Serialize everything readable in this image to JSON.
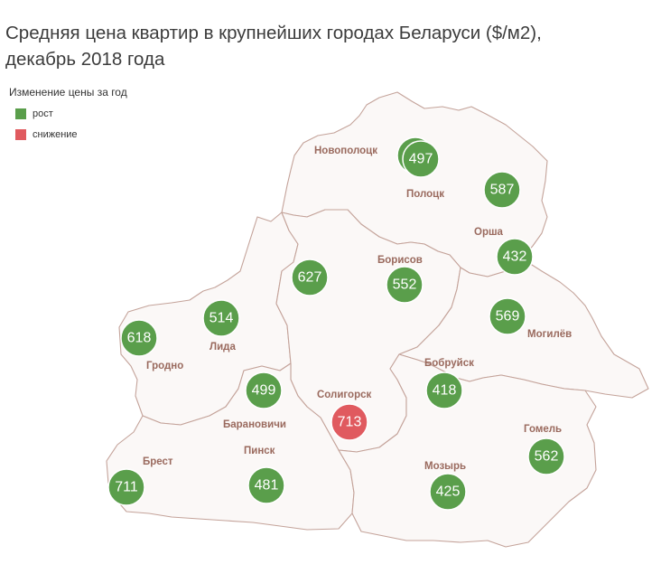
{
  "title_line1": "Средняя цена квартир в крупнейших городах Беларуси ($/м2),",
  "title_line2": "декабрь 2018 года",
  "legend": {
    "title": "Изменение цены за год",
    "items": [
      {
        "label": "рост",
        "color": "#5a9e4b"
      },
      {
        "label": "снижение",
        "color": "#e05a5f"
      }
    ]
  },
  "cities": [
    {
      "label": "Новополоцк",
      "value": null
    },
    {
      "label": "Полоцк",
      "value": 497,
      "change": "рост"
    },
    {
      "label": "",
      "value": 587,
      "change": "рост"
    },
    {
      "label": "Орша",
      "value": 432,
      "change": "рост"
    },
    {
      "label": "Борисов",
      "value": 552,
      "change": "рост"
    },
    {
      "label": "",
      "value": 627,
      "change": "рост"
    },
    {
      "label": "Могилёв",
      "value": 569,
      "change": "рост"
    },
    {
      "label": "Лида",
      "value": 514,
      "change": "рост"
    },
    {
      "label": "Гродно",
      "value": 618,
      "change": "рост"
    },
    {
      "label": "Бобруйск",
      "value": 418,
      "change": "рост"
    },
    {
      "label": "Барановичи",
      "value": 499,
      "change": "рост"
    },
    {
      "label": "Солигорск",
      "value": 713,
      "change": "снижение"
    },
    {
      "label": "Гомель",
      "value": 562,
      "change": "рост"
    },
    {
      "label": "Брест",
      "value": 711,
      "change": "рост"
    },
    {
      "label": "Пинск",
      "value": 481,
      "change": "рост"
    },
    {
      "label": "Мозырь",
      "value": 425,
      "change": "рост"
    }
  ]
}
